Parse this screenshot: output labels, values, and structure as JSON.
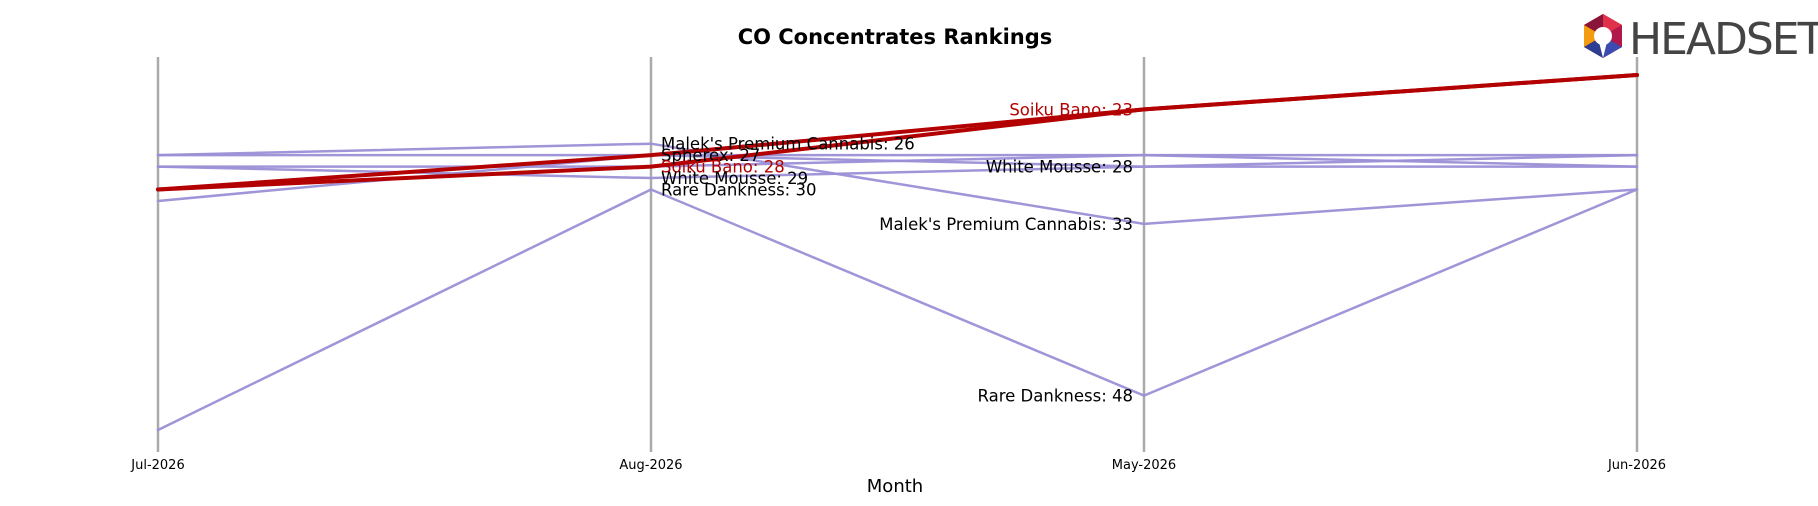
{
  "brand": {
    "name": "HEADSET"
  },
  "colors": {
    "highlight": "#b30000",
    "series": "#9b8fd6",
    "axis": "#aaaaaa",
    "text": "#000000"
  },
  "chart_data": {
    "type": "line",
    "title": "CO Concentrates Rankings",
    "xlabel": "Month",
    "ylabel": "",
    "categories": [
      "Jul-2026",
      "Aug-2026",
      "May-2026",
      "Jun-2026"
    ],
    "ylim": [
      52,
      19
    ],
    "y_inverted": true,
    "highlight_series": "Soiku Bano",
    "series": [
      {
        "name": "Soiku Bano",
        "values": [
          30,
          28,
          23,
          20
        ],
        "highlight": true
      },
      {
        "name": "Soiku Bano",
        "values": [
          30,
          27,
          23,
          20
        ],
        "highlight": true
      },
      {
        "name": "Malek's Premium Cannabis",
        "values": [
          27,
          26,
          33,
          30
        ]
      },
      {
        "name": "Spherex",
        "values": [
          27,
          27,
          27,
          27
        ]
      },
      {
        "name": "White Mousse",
        "values": [
          28,
          29,
          28,
          28
        ]
      },
      {
        "name": "Rare Dankness",
        "values": [
          51,
          30,
          48,
          30
        ]
      },
      {
        "name": null,
        "values": [
          28,
          28,
          27,
          28
        ]
      },
      {
        "name": null,
        "values": [
          31,
          27,
          28,
          27
        ]
      },
      {
        "name": null,
        "values": [
          51,
          null,
          null,
          30
        ]
      }
    ],
    "labels": [
      {
        "x": "Aug-2026",
        "y": 26,
        "text": "Malek's Premium Cannabis: 26",
        "side": "right",
        "highlight": false
      },
      {
        "x": "Aug-2026",
        "y": 27,
        "text": "Spherex: 27",
        "side": "right",
        "highlight": false
      },
      {
        "x": "Aug-2026",
        "y": 28,
        "text": "Soiku Bano: 28",
        "side": "right",
        "highlight": true
      },
      {
        "x": "Aug-2026",
        "y": 29,
        "text": "White Mousse: 29",
        "side": "right",
        "highlight": false
      },
      {
        "x": "Aug-2026",
        "y": 30,
        "text": "Rare Dankness: 30",
        "side": "right",
        "highlight": false
      },
      {
        "x": "May-2026",
        "y": 23,
        "text": "Soiku Bano: 23",
        "side": "left",
        "highlight": true
      },
      {
        "x": "May-2026",
        "y": 28,
        "text": "White Mousse: 28",
        "side": "left",
        "highlight": false
      },
      {
        "x": "May-2026",
        "y": 33,
        "text": "Malek's Premium Cannabis: 33",
        "side": "left",
        "highlight": false
      },
      {
        "x": "May-2026",
        "y": 48,
        "text": "Rare Dankness: 48",
        "side": "left",
        "highlight": false
      }
    ],
    "grid": false,
    "legend": "none"
  }
}
